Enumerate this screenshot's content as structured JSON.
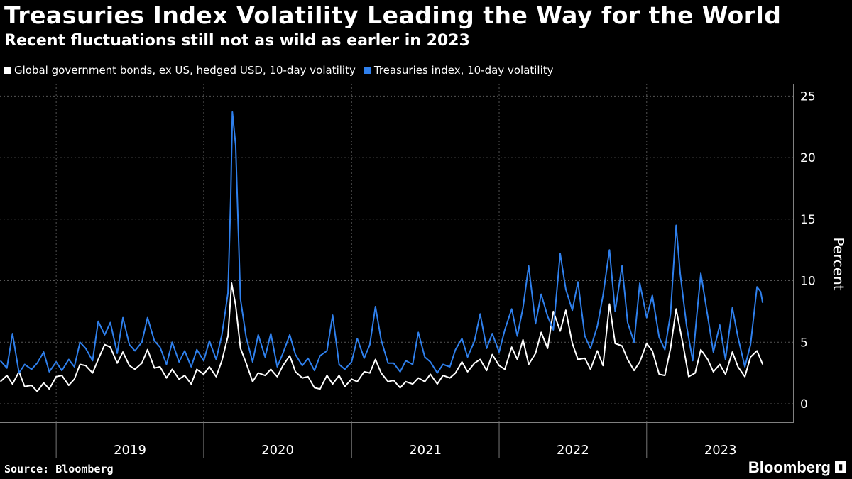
{
  "chart_data": {
    "type": "line",
    "title": "Treasuries Index Volatility Leading the Way for the World",
    "subtitle": "Recent fluctuations still not as wild as earler in 2023",
    "ylabel": "Percent",
    "ylim": [
      -1.5,
      26
    ],
    "yticks": [
      0,
      5,
      10,
      15,
      20,
      25
    ],
    "x_range": [
      "2018-08-15",
      "2023-12-31"
    ],
    "x_tick_labels": [
      "2019",
      "2020",
      "2021",
      "2022",
      "2023"
    ],
    "grid": true,
    "legend_position": "top-left",
    "series": [
      {
        "name": "Global government bonds, ex US, hedged USD, 10-day volatility",
        "color": "#ffffff",
        "points": [
          [
            "2018-08-16",
            1.8
          ],
          [
            "2018-09-01",
            2.3
          ],
          [
            "2018-09-15",
            1.6
          ],
          [
            "2018-10-01",
            2.6
          ],
          [
            "2018-10-15",
            1.4
          ],
          [
            "2018-11-01",
            1.5
          ],
          [
            "2018-11-15",
            1.0
          ],
          [
            "2018-12-01",
            1.7
          ],
          [
            "2018-12-15",
            1.2
          ],
          [
            "2019-01-01",
            2.2
          ],
          [
            "2019-01-15",
            2.3
          ],
          [
            "2019-02-01",
            1.5
          ],
          [
            "2019-02-15",
            2.0
          ],
          [
            "2019-03-01",
            3.2
          ],
          [
            "2019-03-15",
            3.1
          ],
          [
            "2019-04-01",
            2.5
          ],
          [
            "2019-04-15",
            3.6
          ],
          [
            "2019-05-01",
            4.8
          ],
          [
            "2019-05-15",
            4.6
          ],
          [
            "2019-06-01",
            3.3
          ],
          [
            "2019-06-15",
            4.2
          ],
          [
            "2019-07-01",
            3.1
          ],
          [
            "2019-07-15",
            2.8
          ],
          [
            "2019-08-01",
            3.3
          ],
          [
            "2019-08-15",
            4.4
          ],
          [
            "2019-09-01",
            2.9
          ],
          [
            "2019-09-15",
            3.0
          ],
          [
            "2019-10-01",
            2.1
          ],
          [
            "2019-10-15",
            2.8
          ],
          [
            "2019-11-01",
            2.0
          ],
          [
            "2019-11-15",
            2.3
          ],
          [
            "2019-12-01",
            1.6
          ],
          [
            "2019-12-15",
            2.8
          ],
          [
            "2020-01-01",
            2.4
          ],
          [
            "2020-01-15",
            3.0
          ],
          [
            "2020-02-01",
            2.2
          ],
          [
            "2020-02-15",
            3.5
          ],
          [
            "2020-03-01",
            5.5
          ],
          [
            "2020-03-10",
            9.8
          ],
          [
            "2020-03-20",
            8.0
          ],
          [
            "2020-04-01",
            4.5
          ],
          [
            "2020-04-15",
            3.3
          ],
          [
            "2020-05-01",
            1.8
          ],
          [
            "2020-05-15",
            2.5
          ],
          [
            "2020-06-01",
            2.3
          ],
          [
            "2020-06-15",
            2.8
          ],
          [
            "2020-07-01",
            2.2
          ],
          [
            "2020-07-15",
            3.1
          ],
          [
            "2020-08-01",
            3.9
          ],
          [
            "2020-08-15",
            2.6
          ],
          [
            "2020-09-01",
            2.1
          ],
          [
            "2020-09-15",
            2.2
          ],
          [
            "2020-10-01",
            1.3
          ],
          [
            "2020-10-15",
            1.2
          ],
          [
            "2020-11-01",
            2.3
          ],
          [
            "2020-11-15",
            1.6
          ],
          [
            "2020-12-01",
            2.3
          ],
          [
            "2020-12-15",
            1.4
          ],
          [
            "2021-01-01",
            2.0
          ],
          [
            "2021-01-15",
            1.8
          ],
          [
            "2021-02-01",
            2.6
          ],
          [
            "2021-02-15",
            2.5
          ],
          [
            "2021-03-01",
            3.6
          ],
          [
            "2021-03-15",
            2.5
          ],
          [
            "2021-04-01",
            1.8
          ],
          [
            "2021-04-15",
            1.9
          ],
          [
            "2021-05-01",
            1.3
          ],
          [
            "2021-05-15",
            1.8
          ],
          [
            "2021-06-01",
            1.6
          ],
          [
            "2021-06-15",
            2.1
          ],
          [
            "2021-07-01",
            1.8
          ],
          [
            "2021-07-15",
            2.4
          ],
          [
            "2021-08-01",
            1.6
          ],
          [
            "2021-08-15",
            2.3
          ],
          [
            "2021-09-01",
            2.1
          ],
          [
            "2021-09-15",
            2.5
          ],
          [
            "2021-10-01",
            3.4
          ],
          [
            "2021-10-15",
            2.6
          ],
          [
            "2021-11-01",
            3.3
          ],
          [
            "2021-11-15",
            3.6
          ],
          [
            "2021-12-01",
            2.7
          ],
          [
            "2021-12-15",
            4.0
          ],
          [
            "2022-01-01",
            3.1
          ],
          [
            "2022-01-15",
            2.8
          ],
          [
            "2022-02-01",
            4.6
          ],
          [
            "2022-02-15",
            3.6
          ],
          [
            "2022-03-01",
            5.2
          ],
          [
            "2022-03-15",
            3.2
          ],
          [
            "2022-04-01",
            4.1
          ],
          [
            "2022-04-15",
            5.8
          ],
          [
            "2022-05-01",
            4.5
          ],
          [
            "2022-05-15",
            7.5
          ],
          [
            "2022-06-01",
            5.9
          ],
          [
            "2022-06-15",
            7.6
          ],
          [
            "2022-07-01",
            4.9
          ],
          [
            "2022-07-15",
            3.6
          ],
          [
            "2022-08-01",
            3.7
          ],
          [
            "2022-08-15",
            2.8
          ],
          [
            "2022-09-01",
            4.3
          ],
          [
            "2022-09-15",
            3.1
          ],
          [
            "2022-10-01",
            8.1
          ],
          [
            "2022-10-15",
            4.9
          ],
          [
            "2022-11-01",
            4.7
          ],
          [
            "2022-11-15",
            3.6
          ],
          [
            "2022-12-01",
            2.7
          ],
          [
            "2022-12-15",
            3.4
          ],
          [
            "2023-01-01",
            4.9
          ],
          [
            "2023-01-15",
            4.3
          ],
          [
            "2023-02-01",
            2.4
          ],
          [
            "2023-02-15",
            2.3
          ],
          [
            "2023-03-01",
            4.5
          ],
          [
            "2023-03-15",
            7.7
          ],
          [
            "2023-04-01",
            4.8
          ],
          [
            "2023-04-15",
            2.2
          ],
          [
            "2023-05-01",
            2.5
          ],
          [
            "2023-05-15",
            4.4
          ],
          [
            "2023-06-01",
            3.6
          ],
          [
            "2023-06-15",
            2.6
          ],
          [
            "2023-07-01",
            3.2
          ],
          [
            "2023-07-15",
            2.4
          ],
          [
            "2023-08-01",
            4.2
          ],
          [
            "2023-08-15",
            3.0
          ],
          [
            "2023-09-01",
            2.2
          ],
          [
            "2023-09-15",
            3.8
          ],
          [
            "2023-10-01",
            4.3
          ],
          [
            "2023-10-15",
            3.2
          ]
        ]
      },
      {
        "name": "Treasuries index, 10-day volatility",
        "color": "#2f80ed",
        "points": [
          [
            "2018-08-16",
            3.5
          ],
          [
            "2018-09-01",
            2.9
          ],
          [
            "2018-09-15",
            5.7
          ],
          [
            "2018-10-01",
            2.5
          ],
          [
            "2018-10-15",
            3.2
          ],
          [
            "2018-11-01",
            2.8
          ],
          [
            "2018-11-15",
            3.3
          ],
          [
            "2018-12-01",
            4.2
          ],
          [
            "2018-12-15",
            2.6
          ],
          [
            "2019-01-01",
            3.4
          ],
          [
            "2019-01-15",
            2.7
          ],
          [
            "2019-02-01",
            3.6
          ],
          [
            "2019-02-15",
            3.0
          ],
          [
            "2019-03-01",
            5.0
          ],
          [
            "2019-03-15",
            4.5
          ],
          [
            "2019-04-01",
            3.5
          ],
          [
            "2019-04-15",
            6.7
          ],
          [
            "2019-05-01",
            5.6
          ],
          [
            "2019-05-15",
            6.6
          ],
          [
            "2019-06-01",
            4.1
          ],
          [
            "2019-06-15",
            7.0
          ],
          [
            "2019-07-01",
            4.8
          ],
          [
            "2019-07-15",
            4.3
          ],
          [
            "2019-08-01",
            5.0
          ],
          [
            "2019-08-15",
            7.0
          ],
          [
            "2019-09-01",
            5.1
          ],
          [
            "2019-09-15",
            4.6
          ],
          [
            "2019-10-01",
            3.2
          ],
          [
            "2019-10-15",
            5.0
          ],
          [
            "2019-11-01",
            3.4
          ],
          [
            "2019-11-15",
            4.3
          ],
          [
            "2019-12-01",
            3.0
          ],
          [
            "2019-12-15",
            4.4
          ],
          [
            "2020-01-01",
            3.5
          ],
          [
            "2020-01-15",
            5.1
          ],
          [
            "2020-02-01",
            3.6
          ],
          [
            "2020-02-15",
            5.6
          ],
          [
            "2020-03-01",
            9.0
          ],
          [
            "2020-03-08",
            16.8
          ],
          [
            "2020-03-12",
            23.7
          ],
          [
            "2020-03-20",
            21.0
          ],
          [
            "2020-04-01",
            8.5
          ],
          [
            "2020-04-15",
            5.4
          ],
          [
            "2020-05-01",
            3.4
          ],
          [
            "2020-05-15",
            5.6
          ],
          [
            "2020-06-01",
            3.8
          ],
          [
            "2020-06-15",
            5.7
          ],
          [
            "2020-07-01",
            3.0
          ],
          [
            "2020-07-15",
            4.1
          ],
          [
            "2020-08-01",
            5.6
          ],
          [
            "2020-08-15",
            4.0
          ],
          [
            "2020-09-01",
            3.1
          ],
          [
            "2020-09-15",
            3.7
          ],
          [
            "2020-10-01",
            2.7
          ],
          [
            "2020-10-15",
            3.9
          ],
          [
            "2020-11-01",
            4.3
          ],
          [
            "2020-11-15",
            7.2
          ],
          [
            "2020-12-01",
            3.2
          ],
          [
            "2020-12-15",
            2.8
          ],
          [
            "2021-01-01",
            3.4
          ],
          [
            "2021-01-15",
            5.3
          ],
          [
            "2021-02-01",
            3.7
          ],
          [
            "2021-02-15",
            4.8
          ],
          [
            "2021-03-01",
            7.9
          ],
          [
            "2021-03-15",
            5.2
          ],
          [
            "2021-04-01",
            3.3
          ],
          [
            "2021-04-15",
            3.3
          ],
          [
            "2021-05-01",
            2.6
          ],
          [
            "2021-05-15",
            3.5
          ],
          [
            "2021-06-01",
            3.2
          ],
          [
            "2021-06-15",
            5.8
          ],
          [
            "2021-07-01",
            3.8
          ],
          [
            "2021-07-15",
            3.4
          ],
          [
            "2021-08-01",
            2.5
          ],
          [
            "2021-08-15",
            3.2
          ],
          [
            "2021-09-01",
            3.0
          ],
          [
            "2021-09-15",
            4.4
          ],
          [
            "2021-10-01",
            5.3
          ],
          [
            "2021-10-15",
            3.8
          ],
          [
            "2021-11-01",
            5.1
          ],
          [
            "2021-11-15",
            7.3
          ],
          [
            "2021-12-01",
            4.5
          ],
          [
            "2021-12-15",
            5.7
          ],
          [
            "2022-01-01",
            4.2
          ],
          [
            "2022-01-15",
            6.0
          ],
          [
            "2022-02-01",
            7.7
          ],
          [
            "2022-02-15",
            5.5
          ],
          [
            "2022-03-01",
            7.8
          ],
          [
            "2022-03-15",
            11.2
          ],
          [
            "2022-04-01",
            6.5
          ],
          [
            "2022-04-15",
            8.9
          ],
          [
            "2022-05-01",
            7.1
          ],
          [
            "2022-05-15",
            6.0
          ],
          [
            "2022-06-01",
            12.2
          ],
          [
            "2022-06-15",
            9.3
          ],
          [
            "2022-07-01",
            7.6
          ],
          [
            "2022-07-15",
            9.9
          ],
          [
            "2022-08-01",
            5.5
          ],
          [
            "2022-08-15",
            4.5
          ],
          [
            "2022-09-01",
            6.3
          ],
          [
            "2022-09-15",
            8.8
          ],
          [
            "2022-10-01",
            12.5
          ],
          [
            "2022-10-15",
            7.5
          ],
          [
            "2022-11-01",
            11.2
          ],
          [
            "2022-11-15",
            6.6
          ],
          [
            "2022-12-01",
            5.0
          ],
          [
            "2022-12-15",
            9.8
          ],
          [
            "2023-01-01",
            7.0
          ],
          [
            "2023-01-15",
            8.8
          ],
          [
            "2023-02-01",
            5.4
          ],
          [
            "2023-02-15",
            4.4
          ],
          [
            "2023-03-01",
            7.3
          ],
          [
            "2023-03-15",
            14.5
          ],
          [
            "2023-03-25",
            10.6
          ],
          [
            "2023-04-10",
            6.3
          ],
          [
            "2023-04-25",
            3.5
          ],
          [
            "2023-05-05",
            7.2
          ],
          [
            "2023-05-15",
            10.6
          ],
          [
            "2023-06-01",
            7.1
          ],
          [
            "2023-06-15",
            4.2
          ],
          [
            "2023-07-01",
            6.4
          ],
          [
            "2023-07-15",
            3.6
          ],
          [
            "2023-08-01",
            7.8
          ],
          [
            "2023-08-15",
            5.4
          ],
          [
            "2023-09-01",
            3.0
          ],
          [
            "2023-09-15",
            4.8
          ],
          [
            "2023-10-01",
            9.5
          ],
          [
            "2023-10-10",
            9.1
          ],
          [
            "2023-10-15",
            8.2
          ]
        ]
      }
    ]
  },
  "header": {
    "title": "Treasuries Index Volatility Leading the Way for the World",
    "subtitle": "Recent fluctuations still not as wild as earler in 2023"
  },
  "legend": {
    "white_label": "Global government bonds, ex US, hedged USD, 10-day volatility",
    "blue_label": "Treasuries index, 10-day volatility",
    "white_color": "#ffffff",
    "blue_color": "#2f80ed"
  },
  "footer": {
    "source": "Source: Bloomberg",
    "brand": "Bloomberg",
    "brand_icon": "chart-icon"
  }
}
